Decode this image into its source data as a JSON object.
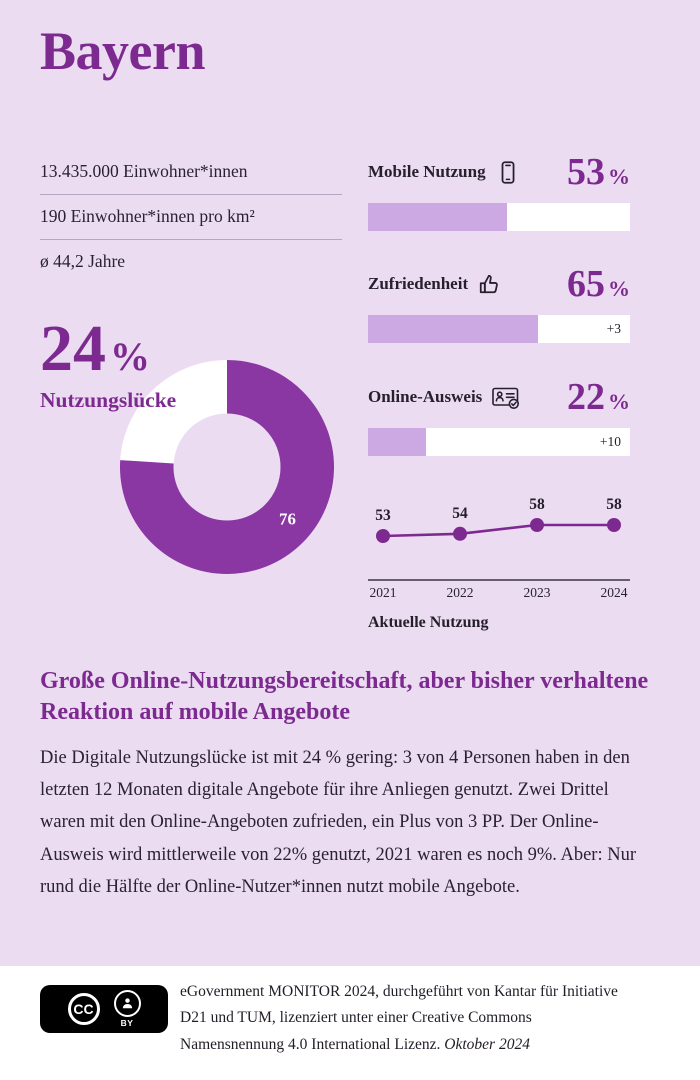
{
  "colors": {
    "background": "#EBDCF2",
    "accent": "#7D2A90",
    "donut": "#8A36A3",
    "bar_fill": "#CDA9E4",
    "bar_track": "#FFFFFF",
    "text_dark": "#2A2230",
    "footer_background": "#FFFFFF"
  },
  "header": {
    "title": "Bayern"
  },
  "stats": {
    "items": [
      "13.435.000 Einwohner*innen",
      "190 Einwohner*innen pro km²",
      "ø 44,2 Jahre"
    ]
  },
  "donut": {
    "value": "24",
    "unit": "%",
    "caption": "Nutzungslücke",
    "filled_percent": 76,
    "gap_percent": 24,
    "segment_label": "76"
  },
  "metrics": [
    {
      "label": "Mobile Nutzung",
      "icon": "smartphone-icon",
      "value": "53",
      "unit": "%",
      "bar_percent": 53,
      "delta": ""
    },
    {
      "label": "Zufriedenheit",
      "icon": "thumbs-up-icon",
      "value": "65",
      "unit": "%",
      "bar_percent": 65,
      "delta": "+3"
    },
    {
      "label": "Online-Ausweis",
      "icon": "id-card-check-icon",
      "value": "22",
      "unit": "%",
      "bar_percent": 22,
      "delta": "+10"
    }
  ],
  "trend": {
    "caption": "Aktuelle Nutzung",
    "years": [
      "2021",
      "2022",
      "2023",
      "2024"
    ],
    "values": [
      53,
      54,
      58,
      58
    ]
  },
  "chart_data": [
    {
      "type": "pie",
      "title": "Nutzungslücke",
      "labels": [
        "Nutzungslücke",
        "Aktuelle Nutzung"
      ],
      "values": [
        24,
        76
      ],
      "center_label": "24%",
      "donut": true,
      "segment_label": "76"
    },
    {
      "type": "bar",
      "categories": [
        "Mobile Nutzung",
        "Zufriedenheit",
        "Online-Ausweis"
      ],
      "values": [
        53,
        65,
        22
      ],
      "annotations": [
        "",
        "+3",
        "+10"
      ],
      "unit": "%",
      "xlim": [
        0,
        100
      ]
    },
    {
      "type": "line",
      "title": "Aktuelle Nutzung",
      "x": [
        "2021",
        "2022",
        "2023",
        "2024"
      ],
      "values": [
        53,
        54,
        58,
        58
      ],
      "ylim": [
        50,
        62
      ],
      "grid": false,
      "legend": false
    }
  ],
  "headline": "Große Online-Nutzungsbereitschaft, aber bisher verhaltene Reaktion auf mobile Angebote",
  "body": "Die Digitale Nutzungslücke ist mit 24 % gering: 3 von 4 Personen haben in den letzten 12 Monaten digitale Angebote für ihre Anliegen genutzt. Zwei Drittel waren mit den Online-Angeboten zufrieden, ein Plus von 3 PP. Der Online-Ausweis wird mittlerweile von 22% genutzt, 2021 waren es noch 9%. Aber: Nur rund die Hälfte der Online-Nutzer*innen nutzt mobile Angebote.",
  "footer": {
    "cc_label": "CC",
    "by_label": "BY",
    "text": "eGovernment MONITOR 2024, durchgeführt von Kantar für Initiative D21 und TUM, lizenziert unter einer Creative Commons Namensnennung 4.0 International Lizenz.",
    "date": "Oktober 2024"
  }
}
